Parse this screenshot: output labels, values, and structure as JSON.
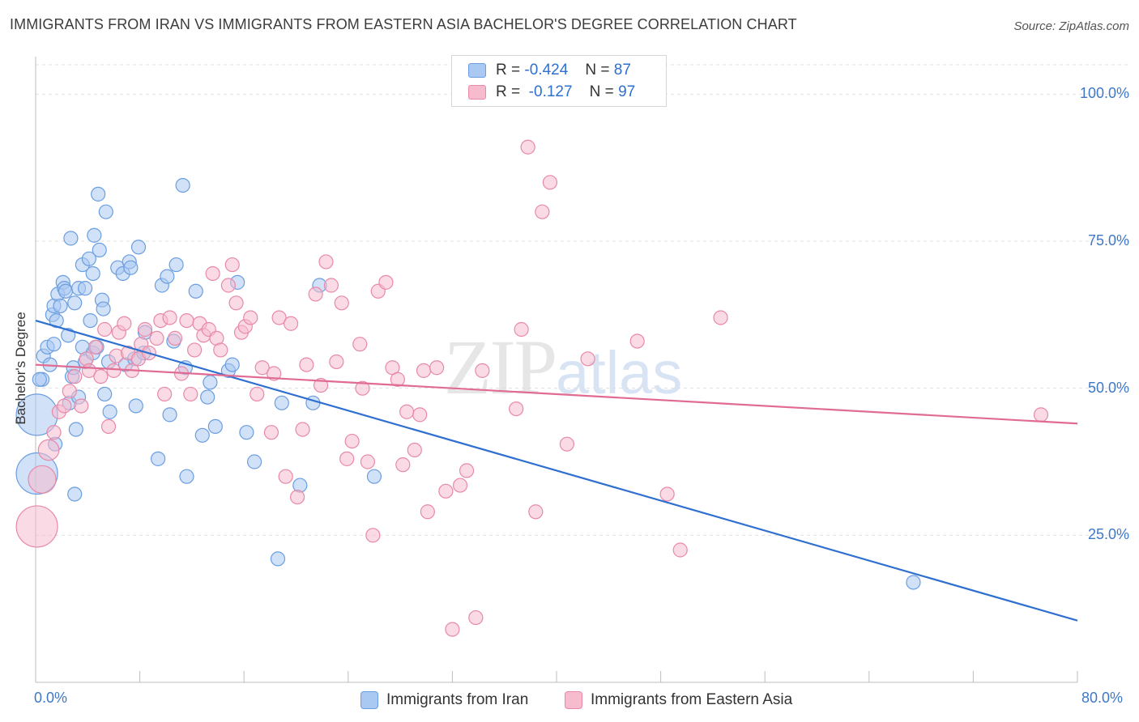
{
  "title": "IMMIGRANTS FROM IRAN VS IMMIGRANTS FROM EASTERN ASIA BACHELOR'S DEGREE CORRELATION CHART",
  "source": "Source: ZipAtlas.com",
  "watermark": {
    "zip": "ZIP",
    "atlas": "atlas"
  },
  "colors": {
    "iran_fill": "#a9c8f2",
    "iran_stroke": "#6b9ee0",
    "iran_line": "#2f6fd0",
    "asia_fill": "#f6bccd",
    "asia_stroke": "#e889a8",
    "asia_line": "#e06b93",
    "tick_text": "#3d78c8",
    "grid": "#e0e0e0"
  },
  "legend_stats": [
    {
      "r_label": "R =",
      "r_value": "-0.424",
      "n_label": "N =",
      "n_value": "87"
    },
    {
      "r_label": "R =",
      "r_value": "-0.127",
      "n_label": "N =",
      "n_value": "97"
    }
  ],
  "chart_data": {
    "type": "scatter",
    "title": "IMMIGRANTS FROM IRAN VS IMMIGRANTS FROM EASTERN ASIA BACHELOR'S DEGREE CORRELATION CHART",
    "xlabel": "",
    "ylabel": "Bachelor's Degree",
    "xlim": [
      0,
      80
    ],
    "ylim": [
      0,
      105
    ],
    "x_tick_labels": [
      "0.0%",
      "80.0%"
    ],
    "y_ticks": [
      25,
      50,
      75,
      100
    ],
    "y_tick_labels": [
      "25.0%",
      "50.0%",
      "75.0%",
      "100.0%"
    ],
    "grid": true,
    "series": [
      {
        "name": "Immigrants from Iran",
        "r": -0.424,
        "n": 87,
        "trend": {
          "x": [
            0,
            80
          ],
          "y": [
            61.5,
            10.5
          ]
        },
        "points": [
          {
            "x": 0.1,
            "y": 45.5,
            "s": 3
          },
          {
            "x": 0.1,
            "y": 35.5,
            "s": 3
          },
          {
            "x": 0.5,
            "y": 51.5
          },
          {
            "x": 0.6,
            "y": 55.5
          },
          {
            "x": 0.9,
            "y": 57
          },
          {
            "x": 1.1,
            "y": 54
          },
          {
            "x": 1.3,
            "y": 62.5
          },
          {
            "x": 1.4,
            "y": 64
          },
          {
            "x": 1.4,
            "y": 57.5
          },
          {
            "x": 1.6,
            "y": 61.5
          },
          {
            "x": 1.7,
            "y": 66
          },
          {
            "x": 1.5,
            "y": 40.5
          },
          {
            "x": 1.9,
            "y": 64
          },
          {
            "x": 2.1,
            "y": 68
          },
          {
            "x": 2.2,
            "y": 67
          },
          {
            "x": 2.3,
            "y": 66.5
          },
          {
            "x": 2.5,
            "y": 59
          },
          {
            "x": 2.6,
            "y": 47.5
          },
          {
            "x": 2.7,
            "y": 75.5
          },
          {
            "x": 2.8,
            "y": 52
          },
          {
            "x": 2.9,
            "y": 53.5
          },
          {
            "x": 3.0,
            "y": 64.5
          },
          {
            "x": 3.1,
            "y": 43
          },
          {
            "x": 3.0,
            "y": 32
          },
          {
            "x": 3.3,
            "y": 48.5
          },
          {
            "x": 3.3,
            "y": 67
          },
          {
            "x": 3.6,
            "y": 71
          },
          {
            "x": 3.6,
            "y": 57
          },
          {
            "x": 3.8,
            "y": 67
          },
          {
            "x": 3.8,
            "y": 54.5
          },
          {
            "x": 4.1,
            "y": 72
          },
          {
            "x": 4.2,
            "y": 61.5
          },
          {
            "x": 4.4,
            "y": 69.5
          },
          {
            "x": 4.4,
            "y": 56
          },
          {
            "x": 4.5,
            "y": 76
          },
          {
            "x": 4.7,
            "y": 57
          },
          {
            "x": 4.8,
            "y": 83
          },
          {
            "x": 4.9,
            "y": 73.5
          },
          {
            "x": 5.1,
            "y": 65
          },
          {
            "x": 5.2,
            "y": 63.5
          },
          {
            "x": 5.3,
            "y": 49
          },
          {
            "x": 5.4,
            "y": 80
          },
          {
            "x": 5.6,
            "y": 54.5
          },
          {
            "x": 5.7,
            "y": 46
          },
          {
            "x": 6.3,
            "y": 70.5
          },
          {
            "x": 6.7,
            "y": 69.5
          },
          {
            "x": 6.9,
            "y": 54
          },
          {
            "x": 7.2,
            "y": 71.5
          },
          {
            "x": 7.3,
            "y": 70.5
          },
          {
            "x": 7.6,
            "y": 55
          },
          {
            "x": 7.7,
            "y": 47
          },
          {
            "x": 7.9,
            "y": 74
          },
          {
            "x": 8.3,
            "y": 56
          },
          {
            "x": 8.4,
            "y": 59.5
          },
          {
            "x": 9.4,
            "y": 38
          },
          {
            "x": 9.7,
            "y": 67.5
          },
          {
            "x": 10.1,
            "y": 69
          },
          {
            "x": 10.3,
            "y": 45.5
          },
          {
            "x": 10.6,
            "y": 58
          },
          {
            "x": 10.8,
            "y": 71
          },
          {
            "x": 11.3,
            "y": 84.5
          },
          {
            "x": 11.5,
            "y": 53.5
          },
          {
            "x": 11.6,
            "y": 35
          },
          {
            "x": 12.3,
            "y": 66.5
          },
          {
            "x": 12.8,
            "y": 42
          },
          {
            "x": 13.2,
            "y": 48.5
          },
          {
            "x": 13.4,
            "y": 51
          },
          {
            "x": 13.8,
            "y": 43.5
          },
          {
            "x": 14.8,
            "y": 53
          },
          {
            "x": 15.1,
            "y": 54
          },
          {
            "x": 15.5,
            "y": 68
          },
          {
            "x": 16.2,
            "y": 42.5
          },
          {
            "x": 16.8,
            "y": 37.5
          },
          {
            "x": 18.6,
            "y": 21
          },
          {
            "x": 18.9,
            "y": 47.5
          },
          {
            "x": 20.3,
            "y": 33.5
          },
          {
            "x": 21.3,
            "y": 47.5
          },
          {
            "x": 21.8,
            "y": 67.5
          },
          {
            "x": 26.0,
            "y": 35
          },
          {
            "x": 67.4,
            "y": 17
          },
          {
            "x": 0.3,
            "y": 51.5
          }
        ]
      },
      {
        "name": "Immigrants from Eastern Asia",
        "r": -0.127,
        "n": 97,
        "trend": {
          "x": [
            0,
            80
          ],
          "y": [
            54.0,
            44.0
          ]
        },
        "points": [
          {
            "x": 0.1,
            "y": 26.5,
            "s": 3
          },
          {
            "x": 0.5,
            "y": 34.5,
            "s": 2
          },
          {
            "x": 1.0,
            "y": 39.5,
            "s": 1.5
          },
          {
            "x": 1.4,
            "y": 42.5
          },
          {
            "x": 1.8,
            "y": 46
          },
          {
            "x": 2.2,
            "y": 47
          },
          {
            "x": 2.6,
            "y": 49.5
          },
          {
            "x": 3.0,
            "y": 52
          },
          {
            "x": 3.5,
            "y": 47
          },
          {
            "x": 3.9,
            "y": 55
          },
          {
            "x": 4.1,
            "y": 53
          },
          {
            "x": 4.6,
            "y": 57
          },
          {
            "x": 5.0,
            "y": 52
          },
          {
            "x": 5.3,
            "y": 60
          },
          {
            "x": 5.6,
            "y": 43.5
          },
          {
            "x": 6.0,
            "y": 53
          },
          {
            "x": 6.2,
            "y": 55.5
          },
          {
            "x": 6.4,
            "y": 59.5
          },
          {
            "x": 6.8,
            "y": 61
          },
          {
            "x": 7.1,
            "y": 56
          },
          {
            "x": 7.4,
            "y": 53
          },
          {
            "x": 7.9,
            "y": 55
          },
          {
            "x": 8.1,
            "y": 57.5
          },
          {
            "x": 8.4,
            "y": 60
          },
          {
            "x": 8.7,
            "y": 56
          },
          {
            "x": 9.3,
            "y": 58.5
          },
          {
            "x": 9.6,
            "y": 61.5
          },
          {
            "x": 9.9,
            "y": 49
          },
          {
            "x": 10.3,
            "y": 62
          },
          {
            "x": 10.7,
            "y": 58.5
          },
          {
            "x": 11.2,
            "y": 52.5
          },
          {
            "x": 11.6,
            "y": 61.5
          },
          {
            "x": 11.9,
            "y": 49
          },
          {
            "x": 12.2,
            "y": 56.5
          },
          {
            "x": 12.6,
            "y": 61
          },
          {
            "x": 12.9,
            "y": 59
          },
          {
            "x": 13.3,
            "y": 60
          },
          {
            "x": 13.6,
            "y": 69.5
          },
          {
            "x": 13.9,
            "y": 58.5
          },
          {
            "x": 14.2,
            "y": 56.5
          },
          {
            "x": 14.8,
            "y": 67.5
          },
          {
            "x": 15.1,
            "y": 71
          },
          {
            "x": 15.4,
            "y": 64.5
          },
          {
            "x": 15.8,
            "y": 59.5
          },
          {
            "x": 16.1,
            "y": 60.5
          },
          {
            "x": 16.5,
            "y": 62
          },
          {
            "x": 17.0,
            "y": 49
          },
          {
            "x": 17.4,
            "y": 53.5
          },
          {
            "x": 18.1,
            "y": 42.5
          },
          {
            "x": 18.3,
            "y": 52.5
          },
          {
            "x": 18.7,
            "y": 62
          },
          {
            "x": 19.2,
            "y": 35
          },
          {
            "x": 19.6,
            "y": 61
          },
          {
            "x": 20.1,
            "y": 31.5
          },
          {
            "x": 20.5,
            "y": 43
          },
          {
            "x": 20.8,
            "y": 54
          },
          {
            "x": 21.5,
            "y": 66
          },
          {
            "x": 21.9,
            "y": 50.5
          },
          {
            "x": 22.3,
            "y": 71.5
          },
          {
            "x": 22.7,
            "y": 67.5
          },
          {
            "x": 23.1,
            "y": 54.5
          },
          {
            "x": 23.5,
            "y": 64.5
          },
          {
            "x": 23.9,
            "y": 38
          },
          {
            "x": 24.3,
            "y": 41
          },
          {
            "x": 24.9,
            "y": 57.5
          },
          {
            "x": 25.1,
            "y": 50
          },
          {
            "x": 25.5,
            "y": 37.5
          },
          {
            "x": 25.9,
            "y": 25
          },
          {
            "x": 26.3,
            "y": 66.5
          },
          {
            "x": 26.9,
            "y": 68
          },
          {
            "x": 27.4,
            "y": 53.5
          },
          {
            "x": 27.8,
            "y": 51.5
          },
          {
            "x": 28.2,
            "y": 37
          },
          {
            "x": 28.5,
            "y": 46
          },
          {
            "x": 29.1,
            "y": 39.5
          },
          {
            "x": 29.5,
            "y": 45.5
          },
          {
            "x": 29.8,
            "y": 53
          },
          {
            "x": 30.1,
            "y": 29
          },
          {
            "x": 30.8,
            "y": 53.5
          },
          {
            "x": 31.5,
            "y": 32.5
          },
          {
            "x": 32.0,
            "y": 9
          },
          {
            "x": 32.6,
            "y": 33.5
          },
          {
            "x": 33.1,
            "y": 36
          },
          {
            "x": 33.8,
            "y": 11
          },
          {
            "x": 34.3,
            "y": 53
          },
          {
            "x": 36.9,
            "y": 46.5
          },
          {
            "x": 37.3,
            "y": 60
          },
          {
            "x": 37.8,
            "y": 91
          },
          {
            "x": 38.4,
            "y": 29
          },
          {
            "x": 38.9,
            "y": 80
          },
          {
            "x": 39.5,
            "y": 85
          },
          {
            "x": 40.8,
            "y": 40.5
          },
          {
            "x": 42.4,
            "y": 55
          },
          {
            "x": 46.2,
            "y": 58
          },
          {
            "x": 48.5,
            "y": 32
          },
          {
            "x": 49.5,
            "y": 22.5
          },
          {
            "x": 52.6,
            "y": 62
          },
          {
            "x": 77.2,
            "y": 45.5
          }
        ]
      }
    ]
  }
}
